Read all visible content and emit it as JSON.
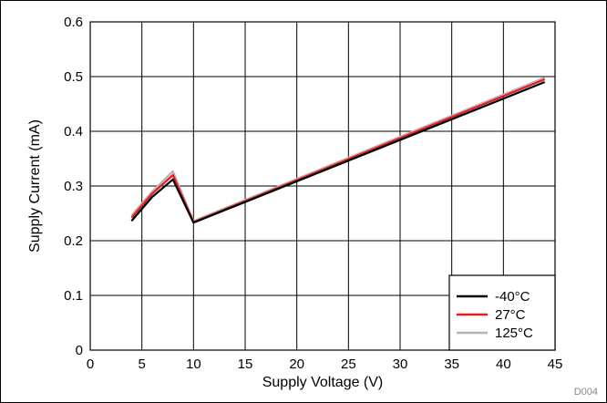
{
  "chart_data": {
    "type": "line",
    "title": "",
    "xlabel": "Supply Voltage (V)",
    "ylabel": "Supply Current (mA)",
    "xlim": [
      0,
      45
    ],
    "ylim": [
      0,
      0.6
    ],
    "xticks": [
      0,
      5,
      10,
      15,
      20,
      25,
      30,
      35,
      40,
      45
    ],
    "yticks": [
      0,
      0.1,
      0.2,
      0.3,
      0.4,
      0.5,
      0.6
    ],
    "xtick_labels": [
      "0",
      "5",
      "10",
      "15",
      "20",
      "25",
      "30",
      "35",
      "40",
      "45"
    ],
    "ytick_labels": [
      "0",
      "0.1",
      "0.2",
      "0.3",
      "0.4",
      "0.5",
      "0.6"
    ],
    "grid": true,
    "legend_position": "bottom-right",
    "series": [
      {
        "name": "-40°C",
        "color": "#000000",
        "x": [
          4,
          6,
          8,
          10,
          44
        ],
        "y": [
          0.236,
          0.28,
          0.312,
          0.233,
          0.49
        ]
      },
      {
        "name": "27°C",
        "color": "#e8191c",
        "x": [
          4,
          6,
          8,
          10,
          44
        ],
        "y": [
          0.242,
          0.286,
          0.32,
          0.234,
          0.495
        ]
      },
      {
        "name": "125°C",
        "color": "#b4b4b4",
        "x": [
          4,
          6,
          8,
          10,
          44
        ],
        "y": [
          0.246,
          0.29,
          0.327,
          0.236,
          0.498
        ]
      }
    ],
    "annotation": "D004"
  }
}
